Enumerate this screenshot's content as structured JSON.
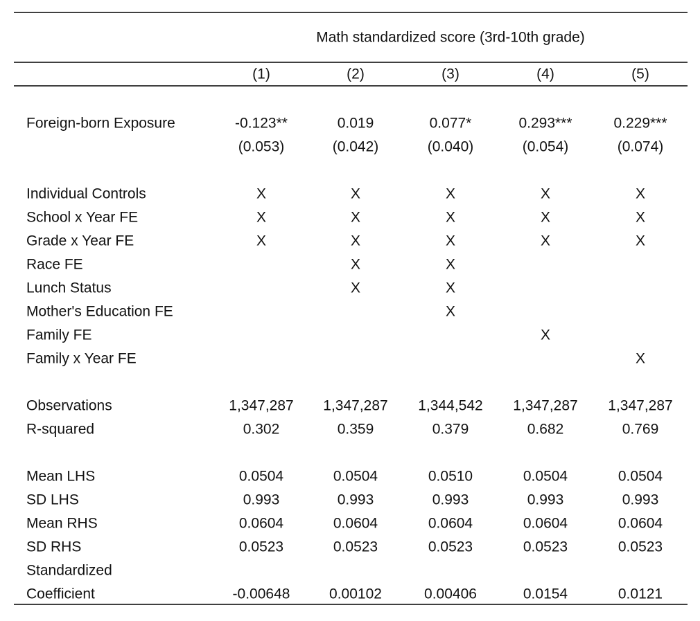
{
  "table": {
    "title": "Math standardized score (3rd-10th grade)",
    "columns": [
      "(1)",
      "(2)",
      "(3)",
      "(4)",
      "(5)"
    ],
    "groups": [
      [
        {
          "label": [
            "Foreign-born Exposure"
          ],
          "cells": [
            "-0.123**",
            "0.019",
            "0.077*",
            "0.293***",
            "0.229***"
          ],
          "std_errors": [
            "(0.053)",
            "(0.042)",
            "(0.040)",
            "(0.054)",
            "(0.074)"
          ]
        }
      ],
      [
        {
          "label": [
            "Individual Controls"
          ],
          "cells": [
            "X",
            "X",
            "X",
            "X",
            "X"
          ]
        },
        {
          "label": [
            "School x Year FE"
          ],
          "cells": [
            "X",
            "X",
            "X",
            "X",
            "X"
          ]
        },
        {
          "label": [
            "Grade x Year FE"
          ],
          "cells": [
            "X",
            "X",
            "X",
            "X",
            "X"
          ]
        },
        {
          "label": [
            "Race FE"
          ],
          "cells": [
            null,
            "X",
            "X",
            null,
            null
          ]
        },
        {
          "label": [
            "Lunch Status"
          ],
          "cells": [
            null,
            "X",
            "X",
            null,
            null
          ]
        },
        {
          "label": [
            "Mother's Education FE"
          ],
          "cells": [
            null,
            null,
            "X",
            null,
            null
          ]
        },
        {
          "label": [
            "Family FE"
          ],
          "cells": [
            null,
            null,
            null,
            "X",
            null
          ]
        },
        {
          "label": [
            "Family x Year FE"
          ],
          "cells": [
            null,
            null,
            null,
            null,
            "X"
          ]
        }
      ],
      [
        {
          "label": [
            "Observations"
          ],
          "cells": [
            "1,347,287",
            "1,347,287",
            "1,344,542",
            "1,347,287",
            "1,347,287"
          ]
        },
        {
          "label": [
            "R-squared"
          ],
          "cells": [
            "0.302",
            "0.359",
            "0.379",
            "0.682",
            "0.769"
          ]
        }
      ],
      [
        {
          "label": [
            "Mean LHS"
          ],
          "cells": [
            "0.0504",
            "0.0504",
            "0.0510",
            "0.0504",
            "0.0504"
          ]
        },
        {
          "label": [
            "SD LHS"
          ],
          "cells": [
            "0.993",
            "0.993",
            "0.993",
            "0.993",
            "0.993"
          ]
        },
        {
          "label": [
            "Mean RHS"
          ],
          "cells": [
            "0.0604",
            "0.0604",
            "0.0604",
            "0.0604",
            "0.0604"
          ]
        },
        {
          "label": [
            "SD RHS"
          ],
          "cells": [
            "0.0523",
            "0.0523",
            "0.0523",
            "0.0523",
            "0.0523"
          ]
        },
        {
          "label": [
            "Standardized",
            "Coefficient"
          ],
          "cells": [
            "-0.00648",
            "0.00102",
            "0.00406",
            "0.0154",
            "0.0121"
          ]
        }
      ]
    ]
  }
}
